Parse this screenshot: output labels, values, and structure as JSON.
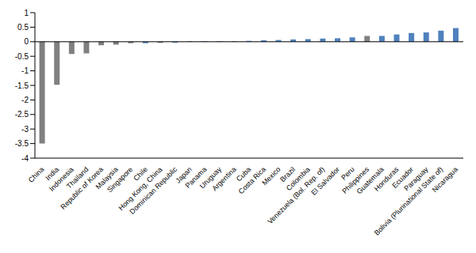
{
  "chart_data": {
    "type": "bar",
    "categories": [
      "China",
      "India",
      "Indonesia",
      "Thailand",
      "Republic of Korea",
      "Malaysia",
      "Singapore",
      "Chile",
      "Hong Kong, China",
      "Dominican Republic",
      "Japan",
      "Panama",
      "Uruguay",
      "Argentina",
      "Cuba",
      "Costa Rica",
      "Mexico",
      "Brazil",
      "Colombia",
      "Venezuela (Bol. Rep. of)",
      "El Salvador",
      "Peru",
      "Philippines",
      "Guatemala",
      "Honduras",
      "Ecuador",
      "Paraguay",
      "Bolivia (Plurinational State of)",
      "Nicaragua"
    ],
    "values": [
      -3.5,
      -1.48,
      -0.42,
      -0.4,
      -0.12,
      -0.1,
      -0.05,
      -0.05,
      -0.04,
      -0.03,
      0.02,
      0.02,
      0.02,
      0.02,
      0.03,
      0.05,
      0.06,
      0.08,
      0.09,
      0.11,
      0.12,
      0.15,
      0.2,
      0.2,
      0.25,
      0.3,
      0.32,
      0.38,
      0.47
    ],
    "colors": [
      "#808080",
      "#808080",
      "#808080",
      "#808080",
      "#808080",
      "#808080",
      "#808080",
      "#4f81bd",
      "#808080",
      "#4f81bd",
      "#808080",
      "#4f81bd",
      "#4f81bd",
      "#4f81bd",
      "#4f81bd",
      "#4f81bd",
      "#4f81bd",
      "#4f81bd",
      "#4f81bd",
      "#4f81bd",
      "#4f81bd",
      "#4f81bd",
      "#808080",
      "#4f81bd",
      "#4f81bd",
      "#4f81bd",
      "#4f81bd",
      "#4f81bd",
      "#4f81bd"
    ],
    "ylim": [
      -4,
      1
    ],
    "yticks": [
      -4,
      -3.5,
      -3,
      -2.5,
      -2,
      -1.5,
      -1,
      -0.5,
      0,
      0.5,
      1
    ],
    "grid": false
  }
}
